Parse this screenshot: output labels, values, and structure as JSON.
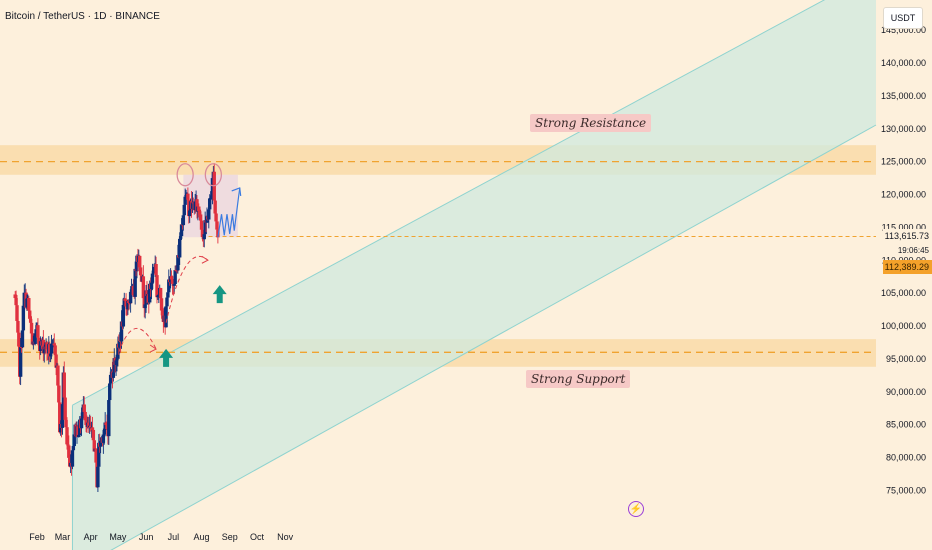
{
  "header": {
    "title": "Bitcoin / TetherUS · 1D · BINANCE",
    "currency": "USDT"
  },
  "price_axis": {
    "last_price": "113,615.73",
    "countdown": "19:06:45",
    "current_price": "112,389.29"
  },
  "annotations": {
    "resistance_label": "Strong Resistance",
    "support_label": "Strong Support"
  },
  "icons": {
    "bolt": "lightning-icon"
  },
  "colors": {
    "up": "#0b2f7a",
    "down": "#e0313f",
    "channel": "#8fd3cf",
    "zone": "#f7c77a",
    "dashed_level": "#f0a330",
    "arrow_up": "#169683",
    "projection": "#3b7be0"
  },
  "chart_data": {
    "type": "candlestick",
    "title": "Bitcoin / TetherUS · 1D · BINANCE",
    "xlabel": "",
    "ylabel": "",
    "ylim": [
      71000,
      146000
    ],
    "x_ticks": [
      "Feb",
      "Mar",
      "Apr",
      "May",
      "Jun",
      "Jul",
      "Aug",
      "Sep",
      "Oct",
      "Nov"
    ],
    "y_ticks": [
      "75,000.00",
      "80,000.00",
      "85,000.00",
      "90,000.00",
      "95,000.00",
      "100,000.00",
      "105,000.00",
      "110,000.00",
      "115,000.00",
      "120,000.00",
      "125,000.00",
      "130,000.00",
      "135,000.00",
      "140,000.00",
      "145,000.00"
    ],
    "y_tick_values": [
      75000,
      80000,
      85000,
      90000,
      95000,
      100000,
      105000,
      110000,
      115000,
      120000,
      125000,
      130000,
      135000,
      140000,
      145000
    ],
    "series": [
      {
        "close_path": [
          [
            "2025-01-08",
            104000
          ],
          [
            "2025-01-13",
            93500
          ],
          [
            "2025-01-18",
            104500
          ],
          [
            "2025-01-22",
            103500
          ],
          [
            "2025-01-27",
            97000
          ],
          [
            "2025-02-01",
            99000
          ],
          [
            "2025-02-05",
            97000
          ],
          [
            "2025-02-10",
            97000
          ],
          [
            "2025-02-15",
            96000
          ],
          [
            "2025-02-21",
            96500
          ],
          [
            "2025-02-24",
            91500
          ],
          [
            "2025-02-26",
            84500
          ],
          [
            "2025-02-28",
            84000
          ],
          [
            "2025-03-02",
            93000
          ],
          [
            "2025-03-04",
            85500
          ],
          [
            "2025-03-10",
            78500
          ],
          [
            "2025-03-14",
            84000
          ],
          [
            "2025-03-20",
            84500
          ],
          [
            "2025-03-25",
            88000
          ],
          [
            "2025-03-28",
            84500
          ],
          [
            "2025-04-01",
            84000
          ],
          [
            "2025-04-05",
            82000
          ],
          [
            "2025-04-08",
            76500
          ],
          [
            "2025-04-10",
            81500
          ],
          [
            "2025-04-15",
            84000
          ],
          [
            "2025-04-20",
            84500
          ],
          [
            "2025-04-22",
            91500
          ],
          [
            "2025-04-26",
            94000
          ],
          [
            "2025-05-02",
            96500
          ],
          [
            "2025-05-08",
            103000
          ],
          [
            "2025-05-14",
            104000
          ],
          [
            "2025-05-19",
            105500
          ],
          [
            "2025-05-22",
            111500
          ],
          [
            "2025-05-26",
            109000
          ],
          [
            "2025-05-30",
            104000
          ],
          [
            "2025-06-04",
            104500
          ],
          [
            "2025-06-09",
            108500
          ],
          [
            "2025-06-11",
            110000
          ],
          [
            "2025-06-13",
            105000
          ],
          [
            "2025-06-17",
            104500
          ],
          [
            "2025-06-22",
            99500
          ],
          [
            "2025-06-24",
            105500
          ],
          [
            "2025-06-30",
            107000
          ],
          [
            "2025-07-05",
            108500
          ],
          [
            "2025-07-10",
            115500
          ],
          [
            "2025-07-14",
            120000
          ],
          [
            "2025-07-18",
            118000
          ],
          [
            "2025-07-24",
            118500
          ],
          [
            "2025-07-30",
            117500
          ],
          [
            "2025-08-03",
            113500
          ],
          [
            "2025-08-08",
            117000
          ],
          [
            "2025-08-11",
            119500
          ],
          [
            "2025-08-14",
            123000
          ],
          [
            "2025-08-16",
            117500
          ],
          [
            "2025-08-19",
            113600
          ]
        ]
      }
    ],
    "levels": [
      {
        "name": "Strong Resistance",
        "zone": [
          123000,
          127500
        ],
        "line": 125000
      },
      {
        "name": "Strong Support",
        "zone": [
          93800,
          98000
        ],
        "line": 96000
      }
    ],
    "grid": false,
    "legend": "none"
  }
}
